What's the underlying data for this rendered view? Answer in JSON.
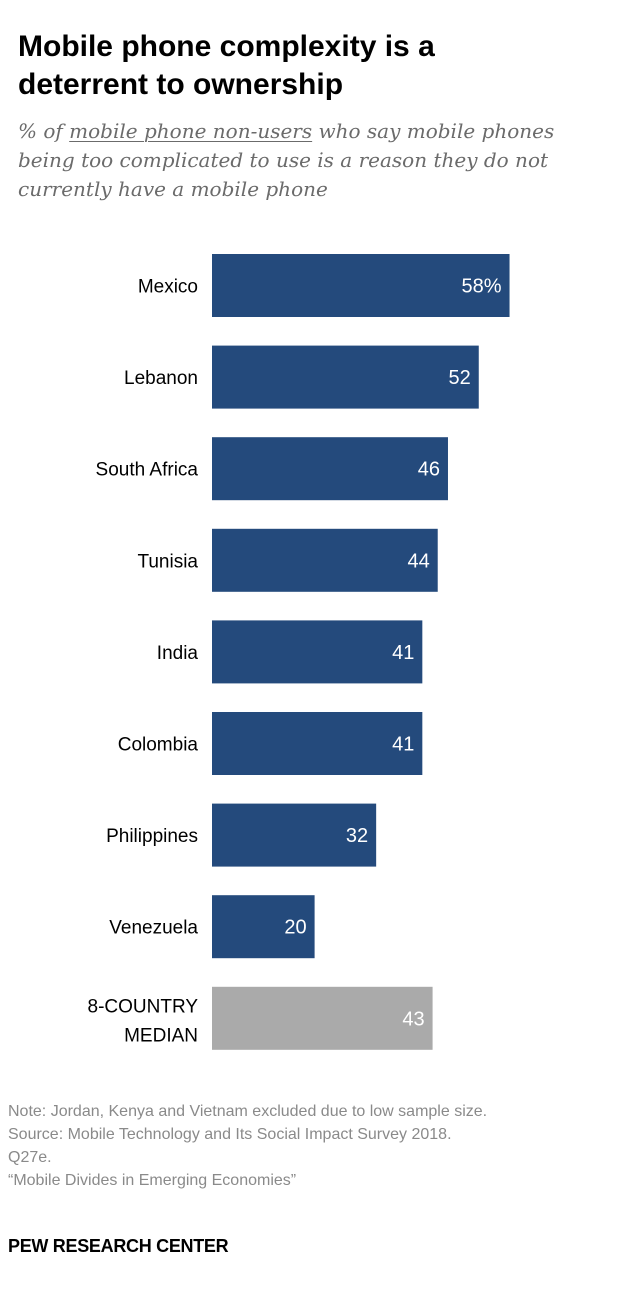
{
  "header": {
    "title_line1": "Mobile phone complexity is a",
    "title_line2": "deterrent to ownership",
    "subtitle_pre": "% of ",
    "subtitle_underlined": "mobile phone non-users",
    "subtitle_post": " who say mobile phones being too complicated to use is a reason they do not currently have a mobile phone"
  },
  "chart_data": {
    "type": "bar",
    "orientation": "horizontal",
    "categories": [
      "Mexico",
      "Lebanon",
      "South Africa",
      "Tunisia",
      "India",
      "Colombia",
      "Philippines",
      "Venezuela",
      "8-COUNTRY MEDIAN"
    ],
    "values": [
      58,
      52,
      46,
      44,
      41,
      41,
      32,
      20,
      43
    ],
    "value_labels": [
      "58%",
      "52",
      "46",
      "44",
      "41",
      "41",
      "32",
      "20",
      "43"
    ],
    "colors": {
      "bar": "#244a7c",
      "median_bar": "#aaaaaa",
      "label_text": "#ffffff"
    }
  },
  "footer": {
    "note": "Note: Jordan, Kenya and Vietnam excluded due to low sample size.",
    "source_line1": "Source: Mobile Technology and Its Social Impact Survey 2018.",
    "source_line2": "Q27e.",
    "report": "“Mobile Divides in Emerging Economies”",
    "brand": "PEW RESEARCH CENTER"
  }
}
